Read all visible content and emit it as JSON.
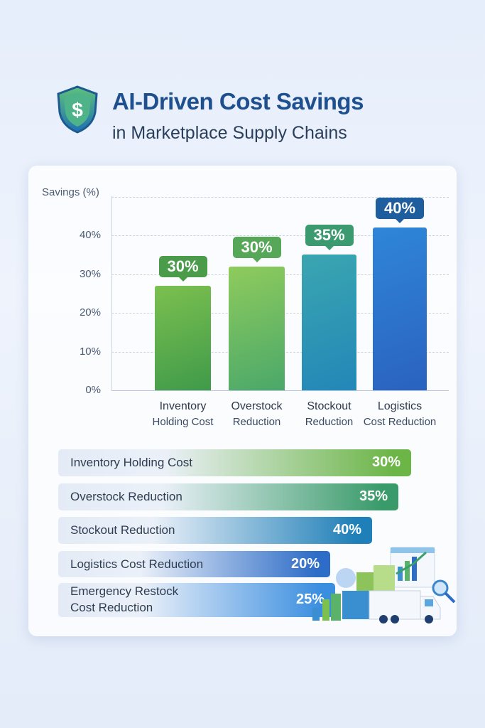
{
  "header": {
    "title": "AI-Driven Cost Savings",
    "subtitle": "in Marketplace Supply Chains",
    "icon": "shield-dollar-icon",
    "shield_symbol": "$"
  },
  "chart_data": [
    {
      "type": "bar",
      "ylabel": "Savings (%)",
      "yticks": [
        "0%",
        "10%",
        "20%",
        "30%",
        "40%"
      ],
      "ylim": [
        0,
        50
      ],
      "grid": true,
      "categories": [
        [
          "Inventory",
          "Holding Cost"
        ],
        [
          "Overstock",
          "Reduction"
        ],
        [
          "Stockout",
          "Reduction"
        ],
        [
          "Logistics",
          "Cost Reduction"
        ]
      ],
      "values": [
        30,
        30,
        35,
        40
      ],
      "data_labels": [
        "30%",
        "30%",
        "35%",
        "40%"
      ],
      "bar_levels": [
        27,
        32,
        35,
        42
      ],
      "colors": [
        [
          "#3f9a4a",
          "#7cc04f"
        ],
        [
          "#4aa86a",
          "#8fcb5c"
        ],
        [
          "#2387b8",
          "#3aa6b0"
        ],
        [
          "#2a62c0",
          "#2f86d8"
        ]
      ],
      "label_colors": [
        "#4a9c4a",
        "#56a758",
        "#3c9a70",
        "#1f5e9e"
      ]
    },
    {
      "type": "bar",
      "orientation": "horizontal",
      "categories": [
        "Inventory Holding Cost",
        "Overstock Reduction",
        "Stockout Reduction",
        "Logistics Cost Reduction",
        [
          "Emergency Restock",
          "Cost Reduction"
        ]
      ],
      "values": [
        30,
        35,
        40,
        20,
        25
      ],
      "data_labels": [
        "30%",
        "35%",
        "40%",
        "20%",
        "25%"
      ],
      "colors": [
        "#6cb547",
        "#3a9b6a",
        "#1f7fb8",
        "#2d6cc7",
        "#3a8ee0"
      ]
    }
  ],
  "illustration": "logistics-truck-analytics-icon"
}
